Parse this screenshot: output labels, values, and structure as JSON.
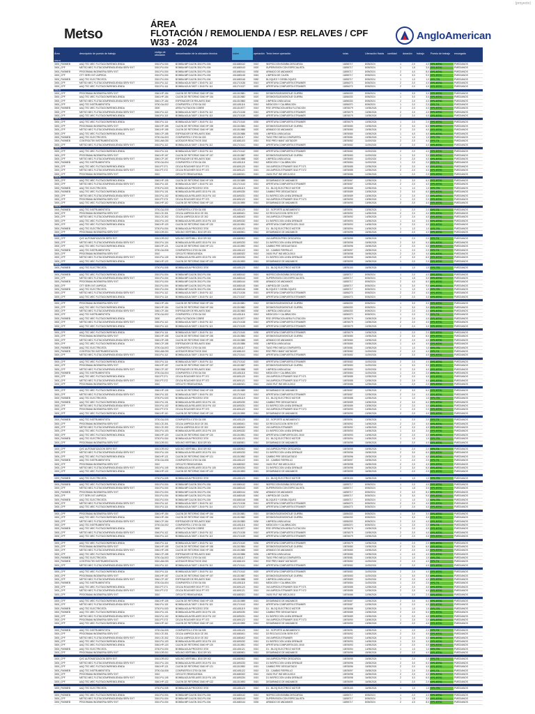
{
  "corner_label": "(proyecto)",
  "brand_left": "Metso",
  "brand_right": "AngloAmerican",
  "title": {
    "line1": "ÁREA",
    "line2": "FLOTACIÓN / REMOLIENDA / ESP. RELAVES / CPF",
    "line3": "W33 - 2024"
  },
  "columns": [
    "Área",
    "descripción de puesto de trabajo",
    "código de ubicación",
    "denominación de la ubicación técnica",
    "orden",
    "operación",
    "Texto breve operación",
    "rutas",
    "Liberación Hasta",
    "cantidad",
    "duración",
    "trabajo",
    "Puesto de trabajo",
    "encargado"
  ],
  "section_codes": [
    "W33-01",
    "W33-02",
    "W33-03",
    "W33-04",
    "W33-05",
    "W33-06",
    "W33-07",
    "W33-08"
  ],
  "rows": [
    [
      "3000_FM0MEB",
      "AAQ TEC MEC FLOTACION/REMOLIENDA",
      "3010-PU-004",
      "BOMBA IMP.CAJON 3010 PU-004",
      "4011680142",
      "0010",
      "INSPECCION BOMBA DESCARGA",
      "11855717",
      "8/05/2024",
      "1",
      "2,0",
      "4,0",
      "GP1-MTN1",
      "PMEDIANOS"
    ],
    [
      "3000_CPF",
      "METSO MEC FLOTACION/REMOLIENDA SERV EXT",
      "3010-PU-004",
      "BOMBA IMP.CAJON 3010 PU-004",
      "4011680143",
      "0020",
      "SUPERVISION CON ESPECIALISTA",
      "11855717",
      "8/05/2024",
      "1",
      "1,5",
      "3,0",
      "GP1-MTN1",
      "PMEDIANOS"
    ],
    [
      "3000_FM0MEB",
      "PROGRAMA INGENIERIA SERV EXT",
      "3010-PU-004",
      "BOMBA IMP.CAJON 3010 PU-004",
      "4011680144",
      "0030",
      "ARMADO DE ANDAMIOS",
      "11855717",
      "8/05/2024",
      "2",
      "4,0",
      "8,0",
      "GP1-MTN1",
      "PMEDIANOS"
    ],
    [
      "3000_CPF",
      "OTT SERV INT LIMPIEZA",
      "3010-PU-004",
      "BOMBA IMP.CAJON 3010 PU-004",
      "4011680145",
      "0040",
      "LIMPIEZA DE CAJON",
      "11855717",
      "8/05/2024",
      "3",
      "3,0",
      "9,0",
      "GP1-MTN1",
      "PMEDIANOS"
    ],
    [
      "3000_FM0MEB",
      "AAQ TEC ELECTRICISTA",
      "3010-PU-004",
      "BOMBA IMP.CAJON 3010 PU-004",
      "4011680146",
      "0050",
      "BLOQUEO Y DESBLOQUEO",
      "11855717",
      "8/05/2024",
      "1",
      "1,0",
      "1,0",
      "GP1-TE1",
      "PMEDIANOS"
    ],
    [
      "3000_CPF",
      "METSO MEC FLOTACION/REMOLIENDA SERV EXT",
      "3010-PU-112",
      "BOMBA AGUA TAEF 1 3040 PU 112",
      "4011710136",
      "0010",
      "APERTURA COMPUERTA STRAINER",
      "11856273",
      "8/05/2024",
      "2",
      "2,0",
      "4,0",
      "GP1-MTN1",
      "PMEDIANOS"
    ],
    [
      "3000_CPF",
      "AAQ TEC MEC FLOTACION/REMOLIENDA",
      "3010-PU-114",
      "BOMBA AGUA TAEF 1 3040 PU 114",
      "4011710137",
      "0020",
      "APERTURA COMPUERTA STRAINER",
      "11856273",
      "8/05/2024",
      "2",
      "2,0",
      "4,0",
      "GP1-MTN1",
      "PMEDIANOS"
    ],
    [
      "3000_CPF",
      "PROGRAMA INGENIERIA SERV EXT",
      "3040-HP-154",
      "CAJON DE RETORNO 3040 HP 154",
      "4011310581",
      "0010",
      "DESMONTAJE/MONTAJE GUIRRA",
      "11856333",
      "8/05/2024",
      "1",
      "3,0",
      "3,0",
      "GP1-MTN1",
      "PMEDIANOS"
    ],
    [
      "3000_CPF",
      "AAQ TEC MEC FLOTACION/REMOLIENDA",
      "3040-HP-154",
      "CAJON DE RETORNO 3040 HP 154",
      "4011310582",
      "0020",
      "DESMONTAJE/MONTAJE GUIRRA",
      "11856333",
      "8/05/2024",
      "1",
      "3,0",
      "3,0",
      "GP1-MTN1",
      "PMEDIANOS"
    ],
    [
      "3000_CPF",
      "METSO MEC FLOTACION/REMOLIENDA SERV EXT",
      "3040-CP-154",
      "ESPESADOR DE RELAVES 3040",
      "4011310583",
      "0030",
      "LIMPIEZA LINEA AGUA",
      "11856333",
      "8/05/2024",
      "2",
      "2,0",
      "4,0",
      "GP1-MTN1",
      "PMEDIANOS"
    ],
    [
      "3000_CPF",
      "AAQ TEC INSTRUMENTISTA",
      "3700-GA-002",
      "COMPUERTA 1 3700 GA 002",
      "4011451116",
      "0010",
      "MEDICION Y CALIBRACION",
      "11856370",
      "8/05/2024",
      "1",
      "2,0",
      "2,0",
      "GP1-TI1",
      "PMEDIANOS"
    ],
    [
      "3000_FM0MEB",
      "AAQ TEC MEC FLOTACION/REMOLIENDA",
      "3000",
      "AREA FLOTACION COBRE",
      "4011310577",
      "0010",
      "RSE OPERACION AREA FLOTACION",
      "10876079",
      "10/05/2024",
      "2",
      "2,0",
      "4,0",
      "GP1-MTN1",
      "PMEDIANOS"
    ],
    [
      "3000_CPF",
      "METSO MEC FLOTACION/REMOLIENDA SERV EXT",
      "3040-PU-112",
      "BOMBA AGUA TAEF 1 3040 PU 112",
      "4011710138",
      "0010",
      "APERTURA COMPUERTA STRAINER",
      "10876079",
      "10/05/2024",
      "2",
      "2,0",
      "4,0",
      "GP1-MTN1",
      "PMEDIANOS"
    ],
    [
      "3000_CPF",
      "AAQ TEC MEC FLOTACION/REMOLIENDA",
      "3040-PU-113",
      "BOMBA AGUA TAEF 1 3040 PU 113",
      "4011710139",
      "0020",
      "APERTURA COMPUERTA STRAINER",
      "10876079",
      "10/05/2024",
      "2",
      "2,0",
      "4,0",
      "GP1-MTN1",
      "PMEDIANOS"
    ],
    [
      "3000_CPF",
      "AAQ TEC MEC FLOTACION/REMOLIENDA",
      "3040-PU-114",
      "BOMBA AGUA TAEF 1 3040 PU 114",
      "4011710140",
      "0030",
      "APERTURA COMPUERTA STRAINER",
      "10876079",
      "10/05/2024",
      "1",
      "2,0",
      "2,0",
      "GP1-MTN1",
      "PMEDIANOS"
    ],
    [
      "3000_CPF",
      "PROGRAMA INGENIERIA SERV EXT",
      "3040-HP-155",
      "CAJON DE RETORNO 3040 HP 155",
      "4011310584",
      "0010",
      "DESMONTAJE/MONTAJE GUIRRA",
      "10876080",
      "10/05/2024",
      "2",
      "3,0",
      "6,0",
      "GP1-MTN1",
      "PMEDIANOS"
    ],
    [
      "3000_CPF",
      "METSO MEC FLOTACION/REMOLIENDA SERV EXT",
      "3040-HP-155",
      "CAJON DE RETORNO 3040 HP 155",
      "4011310585",
      "0020",
      "ARMADO DE ANDAMIOS",
      "10876080",
      "10/05/2024",
      "2",
      "2,0",
      "4,0",
      "GP1-MTN1",
      "PMEDIANOS"
    ],
    [
      "3000_CPF",
      "AAQ TEC MEC FLOTACION/REMOLIENDA",
      "3040-CP-155",
      "ESPESADOR DE RELAVES 3040",
      "4011310586",
      "0030",
      "LIMPIEZA LINEA AGUA",
      "10876080",
      "10/05/2024",
      "1",
      "4,0",
      "4,0",
      "GP1-MTN1",
      "PMEDIANOS"
    ],
    [
      "3000_FM0MEB",
      "AAQ TEC ELECTRICISTA",
      "3700-GA-003",
      "COMPUERTA 2 3700 GA 003",
      "4011451117",
      "0010",
      "TAGO FRIO MECA COMPUERTA",
      "10876081",
      "10/05/2024",
      "1",
      "1,0",
      "1,0",
      "GP1-TE1",
      "PMEDIANOS"
    ],
    [
      "3000_FM0MEB",
      "CONTROLTEK INSTRUMENTACION",
      "3010-AM-030",
      "AGITADOR REACTIVOS 3010",
      "4011681103",
      "0010",
      "RSE PREV MANT AGITADOR",
      "10876082",
      "11/05/2024",
      "2",
      "2,0",
      "4,0",
      "GP1-TI1",
      "PMEDIANOS"
    ],
    [
      "3000_CPF",
      "METSO MEC FLOTACION/REMOLIENDA SERV EXT",
      "3010-PU-112",
      "BOMBA AGUA TAEF 1 3040 PU 112",
      "4011710141",
      "0010",
      "APERTURA COMPUERTA STRAINER",
      "10876082",
      "11/05/2024",
      "2",
      "2,0",
      "4,0",
      "GP1-MTN1",
      "PMEDIANOS"
    ],
    [
      "3000_CPF",
      "AAQ TEC MEC FLOTACION/REMOLIENDA",
      "3010-PU-114",
      "BOMBA AGUA TAEF 1 3040 PU 114",
      "4011710142",
      "0020",
      "APERTURA COMPUERTA STRAINER",
      "10876082",
      "11/05/2024",
      "2",
      "2,0",
      "4,0",
      "GP1-MTN1",
      "PMEDIANOS"
    ],
    [
      "3000_CPF",
      "PROGRAMA INGENIERIA SERV EXT",
      "3040-HP-157",
      "CAJON DE RETORNO 3040 HP 157",
      "4011310587",
      "0010",
      "DESMONTAJE/MONTAJE GUIRRA",
      "10876083",
      "11/05/2024",
      "1",
      "3,0",
      "3,0",
      "GP1-MTN1",
      "PMEDIANOS"
    ],
    [
      "3000_CPF",
      "METSO MEC FLOTACION/REMOLIENDA SERV EXT",
      "3040-CP-157",
      "ESPESADOR DE RELAVES 3040",
      "4011310588",
      "0020",
      "LIMPIEZA LINEA AGUA",
      "10876083",
      "11/05/2024",
      "2",
      "2,0",
      "4,0",
      "GP1-MTN1",
      "PMEDIANOS"
    ],
    [
      "3000_FM0MEB",
      "AAQ TEC INSTRUMENTISTA",
      "3700-GA-004",
      "COMPUERTA 3 3700 GA 004",
      "4011451118",
      "0010",
      "MEDICION Y CALIBRACION",
      "10876084",
      "11/05/2024",
      "1",
      "2,0",
      "2,0",
      "GP1-TI1",
      "PMEDIANOS"
    ],
    [
      "3000_CPF",
      "AAQ TEC MEC FLOTACION/REMOLIENDA",
      "3010-PT-071",
      "CELDA ROUGHER 3010 PT 071",
      "4011691120",
      "0010",
      "1M LIMPIEZA STRAINER 3010 PT 071",
      "10876085",
      "12/05/2024",
      "2",
      "2,0",
      "4,0",
      "GP1-MTN1",
      "PMEDIANOS"
    ],
    [
      "3000_CPF",
      "METSO MEC FLOTACION/REMOLIENDA SERV EXT",
      "3010-PT-072",
      "CELDA ROUGHER 3010 PT 072",
      "4011691121",
      "0010",
      "1M LIMPIEZA STRAINER 3010 PT 072",
      "10876085",
      "12/05/2024",
      "2",
      "2,0",
      "4,0",
      "GP1-MTN1",
      "PMEDIANOS"
    ],
    [
      "3000_CPF",
      "PROGRAMA INGENIERIA SERV EXT",
      "3010",
      "CIRCUITO REMOLIENDA",
      "4011680321",
      "0010",
      "1M/10 RUT INS MECA 3010",
      "10876086",
      "12/05/2024",
      "1",
      "2,0",
      "2,0",
      "GP1-MTN1",
      "PMEDIANOS"
    ],
    [
      "3000_CPF",
      "AAQ TEC MEC FLOTACION/REMOLIENDA",
      "3040-HP-105",
      "CAJON DE RETORNO 3040 HP 105",
      "4011310589",
      "0010",
      "DESARMADO DE ANDAMIOS",
      "10876087",
      "12/05/2024",
      "2",
      "3,0",
      "6,0",
      "GP1-MTN1",
      "PMEDIANOS"
    ],
    [
      "3000_CPF",
      "METSO MEC FLOTACION/REMOLIENDA SERV EXT",
      "3040-PU-115",
      "BOMBA AGUA TAEF 1 3040 PU 115",
      "4011710143",
      "0010",
      "APERTURA COMPUERTA STRAINER",
      "10876087",
      "12/05/2024",
      "2",
      "2,0",
      "4,0",
      "GP1-MTN1",
      "PMEDIANOS"
    ],
    [
      "3000_FM0MEB",
      "AAQ TEC ELECTRICISTA",
      "3700-PU-003",
      "BOMBA AGUA PROCESO 3700",
      "4011451119",
      "0010",
      "D1 - BLOQ ELECTRICO MOTOR",
      "10876088",
      "12/05/2024",
      "1",
      "1,0",
      "1,0",
      "GP1-TE1",
      "PMEDIANOS"
    ],
    [
      "3000_FM0MEB",
      "AAQ TEC MEC FLOTACION/REMOLIENDA",
      "3010-PU-101",
      "BOMBA AGUA RELAVES 3010 PU 101",
      "4011690230",
      "0010",
      "CAMBIO PRE DESGASTADO",
      "10876089",
      "13/05/2024",
      "2",
      "3,0",
      "6,0",
      "GP1-MTN1",
      "PMEDIANOS"
    ],
    [
      "3000_CPF",
      "METSO MEC FLOTACION/REMOLIENDA SERV EXT",
      "3010-PU-102",
      "BOMBA AGUA RELAVES 3010 PU 102",
      "4011690231",
      "0010",
      "D1 INSPECCION LINEA DRENAJE",
      "10876089",
      "13/05/2024",
      "2",
      "2,0",
      "4,0",
      "GP1-MTN1",
      "PMEDIANOS"
    ],
    [
      "3000_CPF",
      "PROGRAMA INGENIERIA SERV EXT",
      "3010-PT-073",
      "CELDA ROUGHER 3010 PT 073",
      "4011691122",
      "0010",
      "1M LIMPIEZA STRAINER 3010 PT 073",
      "10876090",
      "13/05/2024",
      "1",
      "2,0",
      "2,0",
      "GP1-MTN1",
      "PMEDIANOS"
    ],
    [
      "3000_CPF",
      "AAQ TEC MEC FLOTACION/REMOLIENDA",
      "3040-HP-110",
      "CAJON DE RETORNO 3040 HP 110",
      "4011310590",
      "0010",
      "DESARMADO DE ANDAMIOS",
      "10876090",
      "13/05/2024",
      "2",
      "2,0",
      "4,0",
      "GP1-MTN1",
      "PMEDIANOS"
    ],
    [
      "3000_FM0MEB",
      "AAQ TEC INSTRUMENTISTA",
      "3700-GA-005",
      "COMPUERTA 4 3700 GA 005",
      "4011451120",
      "0010",
      "D2 - SOPORTE ALINEAMIENTO",
      "10876091",
      "13/05/2024",
      "1",
      "2,0",
      "2,0",
      "GP1-TI1",
      "PMEDIANOS"
    ],
    [
      "3000_CPF",
      "PROGRAMA INGENIERIA SERV EXT",
      "3010-CE-301",
      "CELDA LIMPIEZA 3010 CE 301",
      "4011680401",
      "0010",
      "D2 RECOLECCION SERV EXT",
      "10876092",
      "14/05/2024",
      "2",
      "2,0",
      "4,0",
      "GP1-MTN1",
      "PMEDIANOS"
    ],
    [
      "3000_CPF",
      "METSO MEC FLOTACION/REMOLIENDA SERV EXT",
      "3010-CE-302",
      "CELDA LIMPIEZA 3010 CE 302",
      "4011680402",
      "0010",
      "1M LIMPIEZA STRAINER",
      "10876092",
      "14/05/2024",
      "2",
      "2,0",
      "4,0",
      "GP1-MTN1",
      "PMEDIANOS"
    ],
    [
      "3000_CPF",
      "AAQ TEC MEC FLOTACION/REMOLIENDA",
      "3010-PU-103",
      "BOMBA AGUA RELAVES 3010 PU 103",
      "4011690232",
      "0010",
      "D1 INSPECCION LINEA DRENAJE",
      "10876093",
      "14/05/2024",
      "1",
      "3,0",
      "3,0",
      "GP1-MTN1",
      "PMEDIANOS"
    ],
    [
      "3000_CPF",
      "AAQ TEC MEC FLOTACION/REMOLIENDA",
      "3040-HP-120",
      "CAJON DE RETORNO 3040 HP 120",
      "4011310591",
      "0010",
      "APERTURA COMPUERTA DEL 3040",
      "10876093",
      "14/05/2024",
      "2",
      "2,0",
      "4,0",
      "GP1-MTN1",
      "PMEDIANOS"
    ],
    [
      "3000_FM0MEB",
      "AAQ TEC ELECTRICISTA",
      "3700-PU-004",
      "BOMBA AGUA PROCESO 3700",
      "4011451121",
      "0010",
      "D1 - BLOQ ELECTRICO MOTOR",
      "10876094",
      "14/05/2024",
      "1",
      "1,0",
      "1,0",
      "GP1-TE1",
      "PMEDIANOS"
    ],
    [
      "3000_CPF",
      "PROGRAMA INGENIERIA SERV EXT",
      "3010-DR-001",
      "MOLINO VERTIMILL 3010 DR 001",
      "4011680501",
      "0010",
      "DESARMADO DE ANDAMIOS",
      "10876095",
      "15/05/2024",
      "2",
      "2,0",
      "4,0",
      "GP1-MTN1",
      "PMEDIANOS"
    ],
    [
      "3000_CPF",
      "QVC AUTOMATIZACION SERV EXT",
      "3010-DR-002",
      "MOLINO VERTIMILL 3010 DR 002",
      "4011680502",
      "0010",
      "1M LIMPIEZA PREV DESCARGA",
      "10876095",
      "15/05/2024",
      "1",
      "2,0",
      "2,0",
      "GP1-TI1",
      "PMEDIANOS"
    ],
    [
      "3000_CPF",
      "METSO MEC FLOTACION/REMOLIENDA SERV EXT",
      "3010-PU-104",
      "BOMBA AGUA RELAVES 3010 PU 104",
      "4011690233",
      "0010",
      "D1 INSPECCION LINEA DRENAJE",
      "10876096",
      "15/05/2024",
      "2",
      "3,0",
      "6,0",
      "GP1-MTN1",
      "PMEDIANOS"
    ],
    [
      "3000_CPF",
      "AAQ TEC MEC FLOTACION/REMOLIENDA",
      "3040-HP-121",
      "CAJON DE RETORNO 3040 HP 121",
      "4011310592",
      "0010",
      "CAMBIO PRE DESGASTADO",
      "10876096",
      "15/05/2024",
      "2",
      "2,0",
      "4,0",
      "GP1-MTN1",
      "PMEDIANOS"
    ],
    [
      "3000_FM0MEB",
      "AAQ TEC INSTRUMENTISTA",
      "3700-GA-006",
      "COMPUERTA 5 3700 GA 006",
      "4011451122",
      "0010",
      "D2 - CAMBIO FIERRILLO",
      "10876097",
      "15/05/2024",
      "1",
      "2,0",
      "2,0",
      "GP1-TI1",
      "PMEDIANOS"
    ],
    [
      "3000_CPF",
      "PROGRAMA INGENIERIA SERV EXT",
      "3010",
      "CIRCUITO REMOLIENDA",
      "4011680322",
      "0010",
      "1M/10 RUT INS MECA 3010",
      "10876098",
      "16/05/2024",
      "2",
      "2,0",
      "4,0",
      "GP1-MTN1",
      "PMEDIANOS"
    ],
    [
      "3000_CPF",
      "METSO MEC FLOTACION/REMOLIENDA SERV EXT",
      "3010-PU-105",
      "BOMBA AGUA RELAVES 3010 PU 105",
      "4011690234",
      "0010",
      "D1 INSPECCION LINEA DRENAJE",
      "10876098",
      "16/05/2024",
      "2",
      "3,0",
      "6,0",
      "GP1-MTN1",
      "PMEDIANOS"
    ],
    [
      "3000_CPF",
      "AAQ TEC MEC FLOTACION/REMOLIENDA",
      "3040-HP-122",
      "CAJON DE RETORNO 3040 HP 122",
      "4011310593",
      "0010",
      "DESARMADO DE ANDAMIOS",
      "10876099",
      "16/05/2024",
      "1",
      "2,0",
      "2,0",
      "GP1-MTN1",
      "PMEDIANOS"
    ],
    [
      "3000_FM0MEB",
      "AAQ TEC ELECTRICISTA",
      "3700-PU-005",
      "BOMBA AGUA PROCESO 3700",
      "4011451123",
      "0010",
      "D1 - BLOQ ELECTRICO MOTOR",
      "10876100",
      "16/05/2024",
      "1",
      "1,0",
      "1,0",
      "GP1-TE1",
      "PMEDIANOS"
    ]
  ]
}
